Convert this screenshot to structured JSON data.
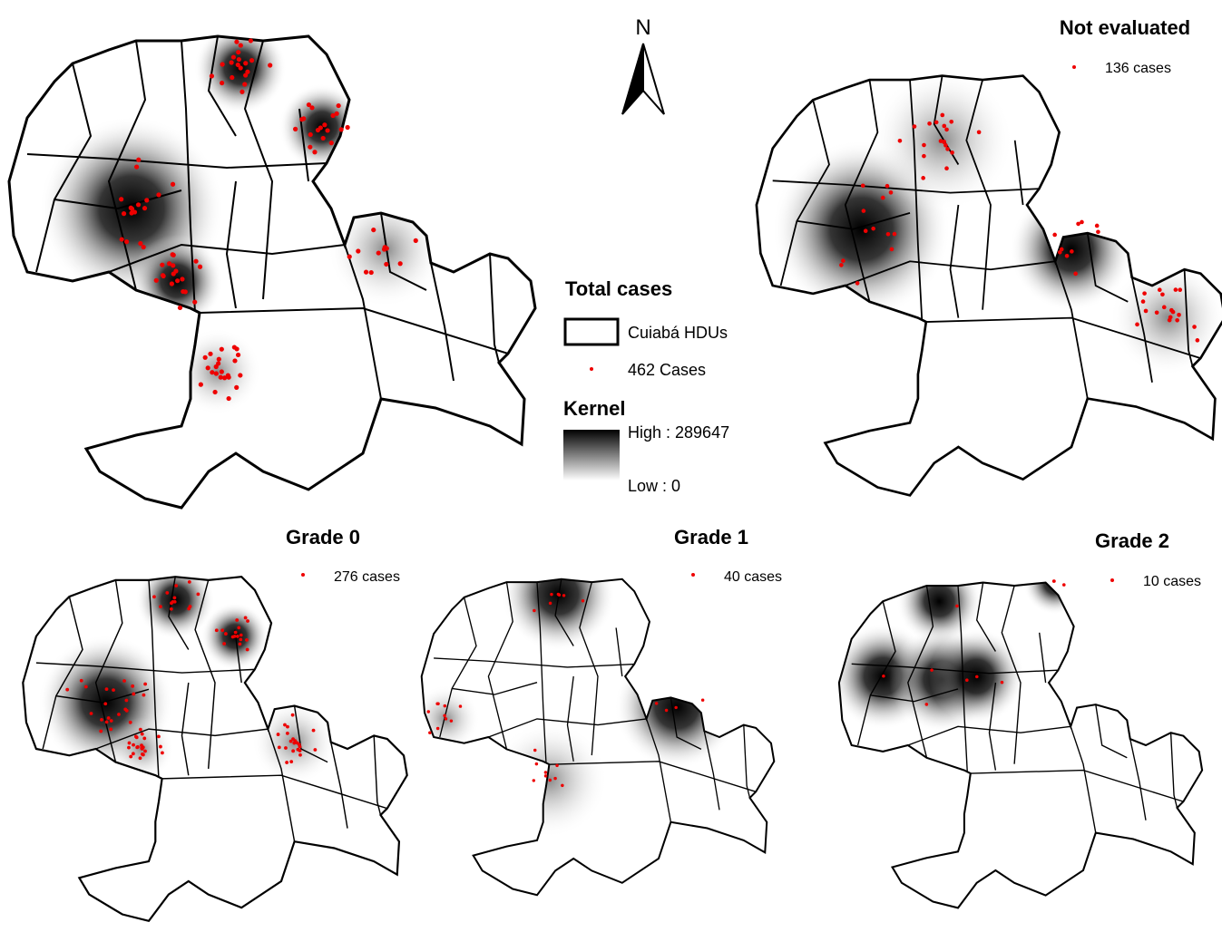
{
  "north_label": "N",
  "legend": {
    "title": "Total cases",
    "boundary": "Cuiabá HDUs",
    "points": "462 Cases",
    "kernel_title": "Kernel",
    "high": "High : 289647",
    "low": "Low : 0"
  },
  "panels": [
    {
      "title": "Not evaluated",
      "cases": "136 cases"
    },
    {
      "title": "Grade 0",
      "cases": "276 cases"
    },
    {
      "title": "Grade 1",
      "cases": "40 cases"
    },
    {
      "title": "Grade 2",
      "cases": "10 cases"
    }
  ]
}
